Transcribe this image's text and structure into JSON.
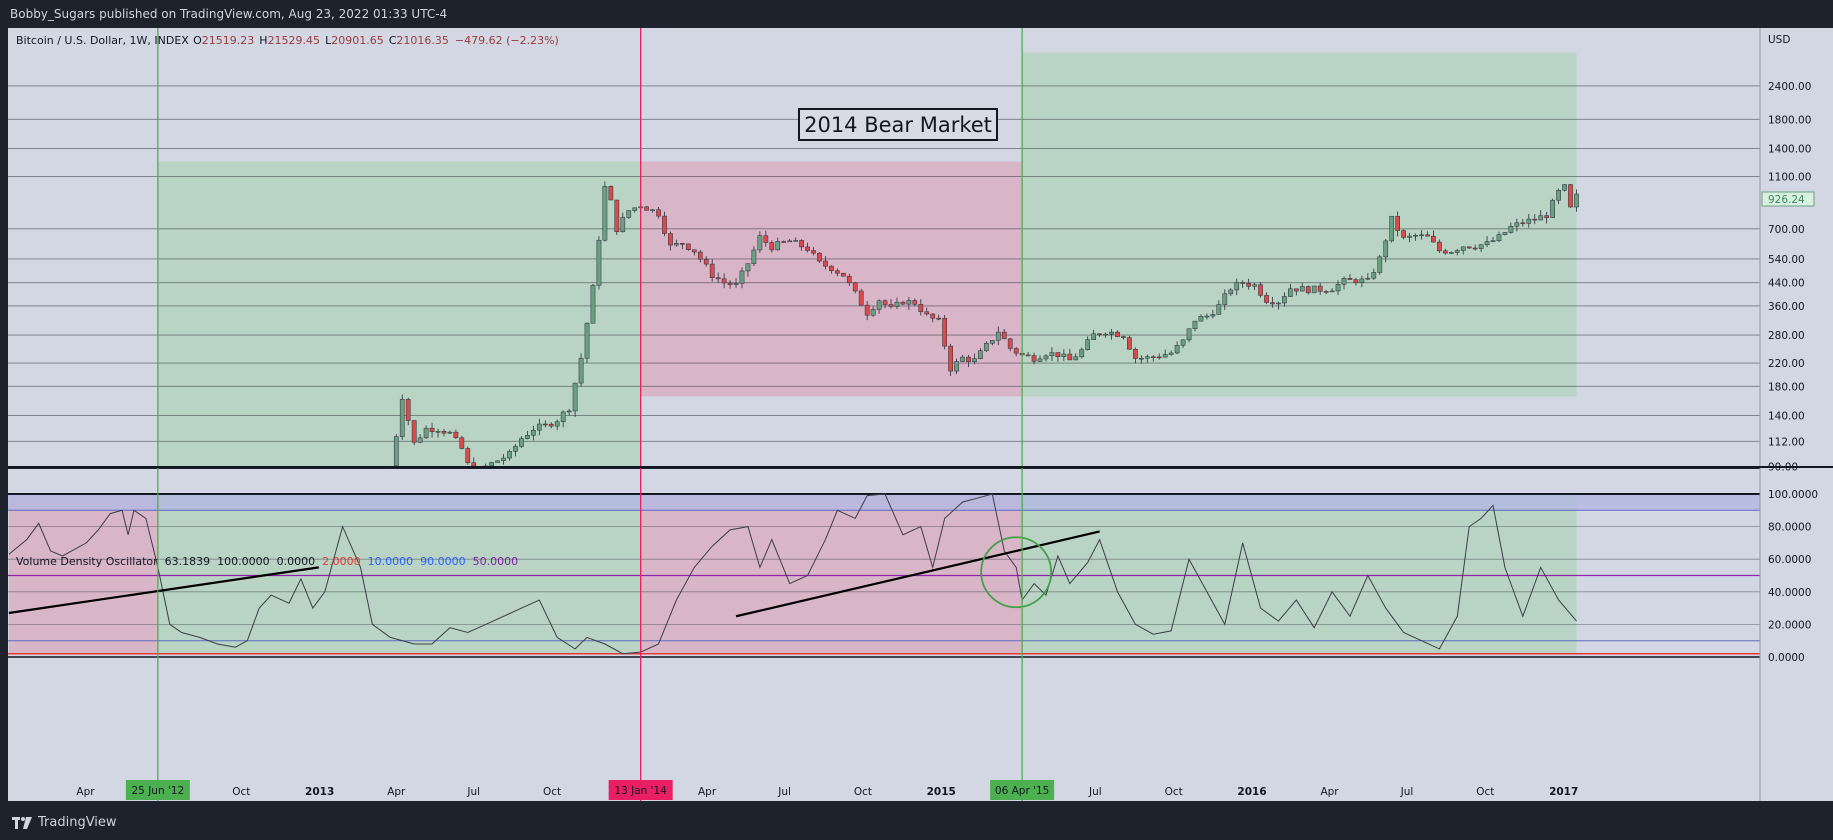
{
  "header": {
    "publish_line": "Bobby_Sugars published on TradingView.com, Aug 23, 2022 01:33 UTC-4"
  },
  "footer": {
    "brand": "TradingView"
  },
  "colors": {
    "green_zone": "#b9d4c4",
    "red_zone": "#d9b5c8",
    "blue_band": "#b4b8e0",
    "bull": "#6a9f82",
    "bear": "#d84b4b",
    "green_line": "#4caf50",
    "red_line": "#e91e63"
  },
  "chart_data": [
    {
      "type": "candlestick",
      "title": "Bitcoin / U.S. Dollar, 1W, INDEX",
      "ohlc": {
        "open_label": "O",
        "open": "21519.23",
        "high_label": "H",
        "high": "21529.45",
        "low_label": "L",
        "low": "20901.65",
        "close_label": "C",
        "close": "21016.35",
        "change": "−479.62 (−2.23%)"
      },
      "currency": "USD",
      "y_scale": "log",
      "ylim": [
        75,
        3200
      ],
      "y_ticks": [
        "2400.00",
        "1800.00",
        "1400.00",
        "1100.00",
        "700.00",
        "540.00",
        "440.00",
        "360.00",
        "280.00",
        "220.00",
        "180.00",
        "140.00",
        "112.00",
        "90.00"
      ],
      "last_price": "926.24",
      "annotation": "2014 Bear Market",
      "x_labels": [
        "Apr",
        "Oct",
        "2013",
        "Apr",
        "Jul",
        "Oct",
        "Apr",
        "Jul",
        "Oct",
        "2015",
        "Jul",
        "Oct",
        "2016",
        "Apr",
        "Jul",
        "Oct",
        "2017"
      ],
      "marker_labels": [
        "25 Jun '12",
        "13 Jan '14",
        "06 Apr '15"
      ],
      "zones": [
        {
          "color": "green",
          "from": "2012-06-25",
          "to": "2014-01-13",
          "price_range": [
            75,
            1250
          ]
        },
        {
          "color": "red",
          "from": "2014-01-13",
          "to": "2015-04-06",
          "price_range": [
            165,
            1250
          ]
        },
        {
          "color": "green",
          "from": "2015-04-06",
          "to": "2017-01-16",
          "price_range": [
            165,
            3200
          ]
        }
      ],
      "close_path": [
        [
          "2013-03-25",
          85
        ],
        [
          "2013-04-08",
          165
        ],
        [
          "2013-04-22",
          110
        ],
        [
          "2013-05-06",
          125
        ],
        [
          "2013-05-20",
          125
        ],
        [
          "2013-06-03",
          120
        ],
        [
          "2013-06-17",
          105
        ],
        [
          "2013-07-01",
          80
        ],
        [
          "2013-07-15",
          90
        ],
        [
          "2013-07-29",
          95
        ],
        [
          "2013-08-12",
          100
        ],
        [
          "2013-08-26",
          115
        ],
        [
          "2013-09-09",
          125
        ],
        [
          "2013-09-23",
          128
        ],
        [
          "2013-10-07",
          135
        ],
        [
          "2013-10-21",
          150
        ],
        [
          "2013-11-04",
          230
        ],
        [
          "2013-11-18",
          420
        ],
        [
          "2013-12-02",
          1000
        ],
        [
          "2013-12-09",
          880
        ],
        [
          "2013-12-16",
          700
        ],
        [
          "2013-12-30",
          820
        ],
        [
          "2014-01-13",
          860
        ],
        [
          "2014-02-03",
          800
        ],
        [
          "2014-02-17",
          600
        ],
        [
          "2014-03-03",
          620
        ],
        [
          "2014-03-17",
          580
        ],
        [
          "2014-04-07",
          470
        ],
        [
          "2014-04-21",
          440
        ],
        [
          "2014-05-05",
          430
        ],
        [
          "2014-05-19",
          520
        ],
        [
          "2014-06-02",
          650
        ],
        [
          "2014-06-16",
          600
        ],
        [
          "2014-07-07",
          630
        ],
        [
          "2014-07-28",
          590
        ],
        [
          "2014-08-11",
          520
        ],
        [
          "2014-08-25",
          500
        ],
        [
          "2014-09-08",
          470
        ],
        [
          "2014-09-22",
          400
        ],
        [
          "2014-10-06",
          340
        ],
        [
          "2014-10-20",
          380
        ],
        [
          "2014-11-03",
          350
        ],
        [
          "2014-11-17",
          375
        ],
        [
          "2014-12-01",
          370
        ],
        [
          "2014-12-15",
          330
        ],
        [
          "2014-12-29",
          315
        ],
        [
          "2015-01-12",
          210
        ],
        [
          "2015-01-26",
          230
        ],
        [
          "2015-02-09",
          225
        ],
        [
          "2015-02-23",
          255
        ],
        [
          "2015-03-09",
          290
        ],
        [
          "2015-03-23",
          250
        ],
        [
          "2015-04-06",
          235
        ],
        [
          "2015-04-20",
          230
        ],
        [
          "2015-05-04",
          240
        ],
        [
          "2015-05-18",
          237
        ],
        [
          "2015-06-01",
          225
        ],
        [
          "2015-06-15",
          245
        ],
        [
          "2015-06-29",
          280
        ],
        [
          "2015-07-13",
          290
        ],
        [
          "2015-08-03",
          280
        ],
        [
          "2015-08-17",
          230
        ],
        [
          "2015-08-31",
          230
        ],
        [
          "2015-09-14",
          235
        ],
        [
          "2015-09-28",
          240
        ],
        [
          "2015-10-12",
          265
        ],
        [
          "2015-10-26",
          320
        ],
        [
          "2015-11-09",
          330
        ],
        [
          "2015-11-23",
          360
        ],
        [
          "2015-12-07",
          420
        ],
        [
          "2015-12-21",
          440
        ],
        [
          "2016-01-04",
          430
        ],
        [
          "2016-01-18",
          380
        ],
        [
          "2016-02-01",
          375
        ],
        [
          "2016-02-15",
          420
        ],
        [
          "2016-03-07",
          415
        ],
        [
          "2016-03-21",
          415
        ],
        [
          "2016-04-04",
          420
        ],
        [
          "2016-04-18",
          445
        ],
        [
          "2016-05-02",
          450
        ],
        [
          "2016-05-16",
          445
        ],
        [
          "2016-05-30",
          540
        ],
        [
          "2016-06-13",
          760
        ],
        [
          "2016-06-27",
          640
        ],
        [
          "2016-07-11",
          660
        ],
        [
          "2016-07-25",
          650
        ],
        [
          "2016-08-08",
          580
        ],
        [
          "2016-08-22",
          580
        ],
        [
          "2016-09-05",
          605
        ],
        [
          "2016-09-19",
          605
        ],
        [
          "2016-10-03",
          615
        ],
        [
          "2016-10-17",
          650
        ],
        [
          "2016-10-31",
          710
        ],
        [
          "2016-11-14",
          740
        ],
        [
          "2016-11-28",
          760
        ],
        [
          "2016-12-12",
          790
        ],
        [
          "2016-12-26",
          960
        ],
        [
          "2017-01-02",
          1000
        ],
        [
          "2017-01-09",
          830
        ],
        [
          "2017-01-16",
          926
        ]
      ]
    },
    {
      "type": "line",
      "title": "Volume Density Oscillator",
      "params": [
        "63.1839",
        "100.0000",
        "0.0000",
        "2.0000",
        "10.0000",
        "90.0000",
        "50.0000"
      ],
      "param_colors": [
        "#131722",
        "#131722",
        "#131722",
        "#e53935",
        "#2962ff",
        "#2962ff",
        "#7b1fa2"
      ],
      "ylim": [
        0,
        100
      ],
      "y_ticks": [
        "100.0000",
        "80.0000",
        "60.0000",
        "40.0000",
        "20.0000",
        "0.0000"
      ],
      "levels": {
        "top": 100,
        "upper_band": 90,
        "mid": 50,
        "lower_band": 10,
        "bottom": 2
      },
      "series": [
        {
          "values": [
            [
              "2012-01-02",
              63
            ],
            [
              "2012-01-23",
              72
            ],
            [
              "2012-02-06",
              82
            ],
            [
              "2012-02-20",
              65
            ],
            [
              "2012-03-05",
              62
            ],
            [
              "2012-03-19",
              66
            ],
            [
              "2012-04-02",
              70
            ],
            [
              "2012-04-16",
              78
            ],
            [
              "2012-04-30",
              88
            ],
            [
              "2012-05-14",
              90
            ],
            [
              "2012-05-21",
              75
            ],
            [
              "2012-05-28",
              90
            ],
            [
              "2012-06-11",
              85
            ],
            [
              "2012-06-25",
              55
            ],
            [
              "2012-07-09",
              20
            ],
            [
              "2012-07-23",
              15
            ],
            [
              "2012-08-13",
              12
            ],
            [
              "2012-09-03",
              8
            ],
            [
              "2012-09-24",
              6
            ],
            [
              "2012-10-08",
              10
            ],
            [
              "2012-10-22",
              30
            ],
            [
              "2012-11-05",
              38
            ],
            [
              "2012-11-26",
              33
            ],
            [
              "2012-12-10",
              48
            ],
            [
              "2012-12-24",
              30
            ],
            [
              "2013-01-07",
              40
            ],
            [
              "2013-01-28",
              80
            ],
            [
              "2013-02-18",
              55
            ],
            [
              "2013-03-04",
              20
            ],
            [
              "2013-03-25",
              12
            ],
            [
              "2013-04-22",
              8
            ],
            [
              "2013-05-13",
              8
            ],
            [
              "2013-06-03",
              18
            ],
            [
              "2013-06-24",
              15
            ],
            [
              "2013-07-15",
              20
            ],
            [
              "2013-08-05",
              25
            ],
            [
              "2013-08-26",
              30
            ],
            [
              "2013-09-16",
              35
            ],
            [
              "2013-10-07",
              12
            ],
            [
              "2013-10-28",
              5
            ],
            [
              "2013-11-11",
              12
            ],
            [
              "2013-12-02",
              8
            ],
            [
              "2013-12-23",
              2
            ],
            [
              "2014-01-13",
              3
            ],
            [
              "2014-02-03",
              8
            ],
            [
              "2014-02-24",
              35
            ],
            [
              "2014-03-17",
              55
            ],
            [
              "2014-04-07",
              68
            ],
            [
              "2014-04-28",
              78
            ],
            [
              "2014-05-19",
              80
            ],
            [
              "2014-06-02",
              55
            ],
            [
              "2014-06-16",
              72
            ],
            [
              "2014-07-07",
              45
            ],
            [
              "2014-07-28",
              50
            ],
            [
              "2014-08-18",
              72
            ],
            [
              "2014-09-01",
              90
            ],
            [
              "2014-09-22",
              85
            ],
            [
              "2014-10-06",
              99
            ],
            [
              "2014-10-27",
              100
            ],
            [
              "2014-11-17",
              75
            ],
            [
              "2014-12-08",
              80
            ],
            [
              "2014-12-22",
              55
            ],
            [
              "2015-01-05",
              85
            ],
            [
              "2015-01-26",
              95
            ],
            [
              "2015-02-16",
              98
            ],
            [
              "2015-03-02",
              100
            ],
            [
              "2015-03-16",
              65
            ],
            [
              "2015-03-30",
              55
            ],
            [
              "2015-04-06",
              35
            ],
            [
              "2015-04-20",
              45
            ],
            [
              "2015-05-04",
              38
            ],
            [
              "2015-05-18",
              62
            ],
            [
              "2015-06-01",
              45
            ],
            [
              "2015-06-22",
              58
            ],
            [
              "2015-07-06",
              72
            ],
            [
              "2015-07-27",
              40
            ],
            [
              "2015-08-17",
              20
            ],
            [
              "2015-09-07",
              14
            ],
            [
              "2015-09-28",
              16
            ],
            [
              "2015-10-19",
              60
            ],
            [
              "2015-11-09",
              40
            ],
            [
              "2015-11-30",
              20
            ],
            [
              "2015-12-21",
              70
            ],
            [
              "2016-01-11",
              30
            ],
            [
              "2016-02-01",
              22
            ],
            [
              "2016-02-22",
              35
            ],
            [
              "2016-03-14",
              18
            ],
            [
              "2016-04-04",
              40
            ],
            [
              "2016-04-25",
              25
            ],
            [
              "2016-05-16",
              50
            ],
            [
              "2016-06-06",
              30
            ],
            [
              "2016-06-27",
              15
            ],
            [
              "2016-07-18",
              10
            ],
            [
              "2016-08-08",
              5
            ],
            [
              "2016-08-29",
              25
            ],
            [
              "2016-09-12",
              80
            ],
            [
              "2016-09-26",
              85
            ],
            [
              "2016-10-10",
              93
            ],
            [
              "2016-10-24",
              55
            ],
            [
              "2016-11-14",
              25
            ],
            [
              "2016-12-05",
              55
            ],
            [
              "2016-12-26",
              35
            ],
            [
              "2017-01-16",
              22
            ]
          ]
        }
      ],
      "trendlines": [
        {
          "from": [
            "2012-01-02",
            27
          ],
          "to": [
            "2012-12-31",
            55
          ]
        },
        {
          "from": [
            "2014-05-05",
            25
          ],
          "to": [
            "2015-07-06",
            77
          ]
        }
      ],
      "circle_center": [
        "2015-03-30",
        52
      ]
    }
  ]
}
